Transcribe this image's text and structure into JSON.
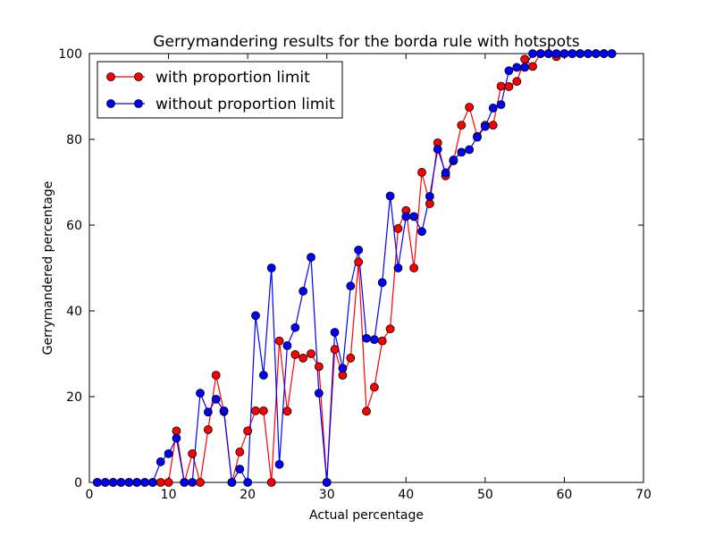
{
  "chart_data": {
    "type": "line",
    "title": "Gerrymandering results for the borda rule with hotspots",
    "xlabel": "Actual percentage",
    "ylabel": "Gerrymandered percentage",
    "xlim": [
      0,
      70
    ],
    "ylim": [
      0,
      100
    ],
    "xticks": [
      0,
      10,
      20,
      30,
      40,
      50,
      60,
      70
    ],
    "yticks": [
      0,
      20,
      40,
      60,
      80,
      100
    ],
    "grid": false,
    "legend_position": "top-left",
    "colors": {
      "series_red": "#ff0000",
      "series_blue": "#0000ff",
      "marker_edge": "#000000"
    },
    "series": [
      {
        "name": "with proportion limit",
        "color": "#ff0000",
        "x": [
          1,
          2,
          3,
          4,
          5,
          6,
          7,
          8,
          9,
          10,
          11,
          12,
          13,
          14,
          15,
          16,
          17,
          18,
          19,
          20,
          21,
          22,
          23,
          24,
          25,
          26,
          27,
          28,
          29,
          30,
          31,
          32,
          33,
          34,
          35,
          36,
          37,
          38,
          39,
          40,
          41,
          42,
          43,
          44,
          45,
          46,
          47,
          48,
          49,
          50,
          51,
          52,
          53,
          54,
          55,
          56,
          57,
          58,
          59,
          60,
          61,
          62,
          63,
          64,
          65,
          66
        ],
        "y": [
          0,
          0,
          0,
          0,
          0,
          0,
          0,
          0,
          0,
          0,
          12,
          0,
          6.7,
          0,
          12.3,
          25,
          16.5,
          0,
          7.1,
          12,
          16.7,
          16.7,
          0,
          33,
          16.6,
          29.8,
          29,
          30,
          27,
          0,
          31,
          25,
          29,
          51.4,
          16.6,
          22.2,
          33,
          35.8,
          59.2,
          63.4,
          50,
          72.3,
          65,
          79.2,
          71.5,
          75,
          83.3,
          87.5,
          80.7,
          83.3,
          83.3,
          92.4,
          92.3,
          93.5,
          98.7,
          97,
          100,
          100,
          99.3,
          100,
          100,
          100,
          100,
          100,
          100,
          100
        ]
      },
      {
        "name": "without proportion limit",
        "color": "#0000ff",
        "x": [
          1,
          2,
          3,
          4,
          5,
          6,
          7,
          8,
          9,
          10,
          11,
          12,
          13,
          14,
          15,
          16,
          17,
          18,
          19,
          20,
          21,
          22,
          23,
          24,
          25,
          26,
          27,
          28,
          29,
          30,
          31,
          32,
          33,
          34,
          35,
          36,
          37,
          38,
          39,
          40,
          41,
          42,
          43,
          44,
          45,
          46,
          47,
          48,
          49,
          50,
          51,
          52,
          53,
          54,
          55,
          56,
          57,
          58,
          59,
          60,
          61,
          62,
          63,
          64,
          65,
          66
        ],
        "y": [
          0,
          0,
          0,
          0,
          0,
          0,
          0,
          0,
          4.8,
          6.7,
          10.3,
          0,
          0,
          20.8,
          16.4,
          19.4,
          16.7,
          0,
          3.1,
          0,
          38.9,
          25,
          50,
          4.2,
          31.9,
          36.1,
          44.6,
          52.5,
          20.8,
          0,
          35,
          26.6,
          45.8,
          54.2,
          33.6,
          33.3,
          46.6,
          66.8,
          50,
          62,
          62,
          58.5,
          66.7,
          77.7,
          72.2,
          75.2,
          77,
          77.6,
          80.5,
          83,
          87.3,
          88.1,
          96,
          96.8,
          96.8,
          100,
          100,
          100,
          100,
          100,
          100,
          100,
          100,
          100,
          100,
          100
        ]
      }
    ]
  }
}
